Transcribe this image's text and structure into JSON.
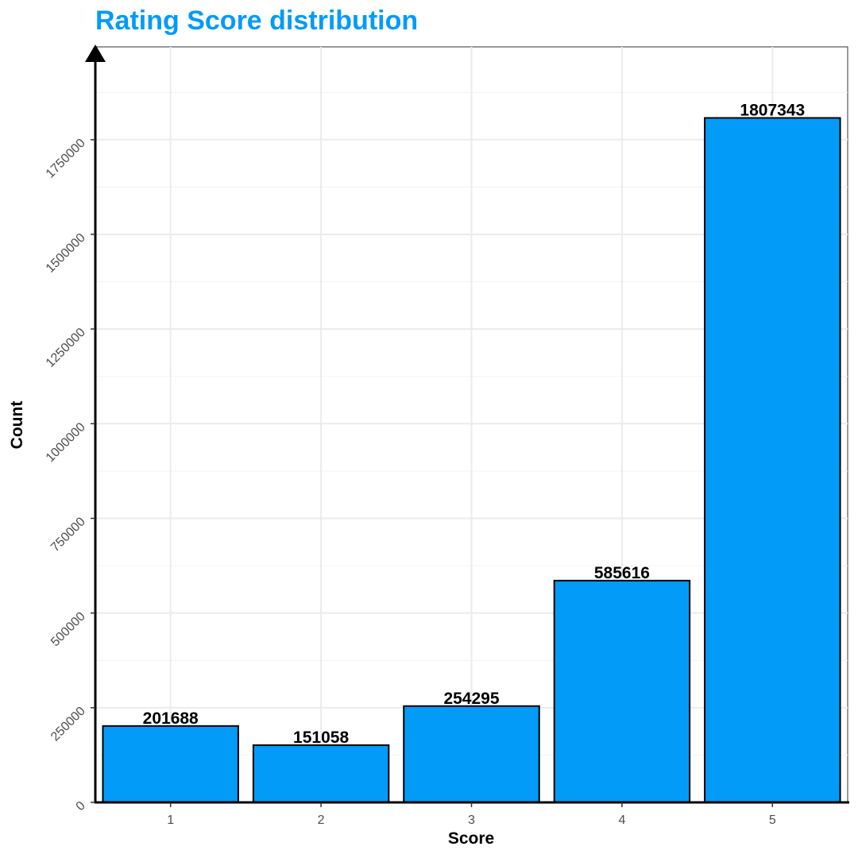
{
  "chart_data": {
    "type": "bar",
    "title": "Rating Score distribution",
    "xlabel": "Score",
    "ylabel": "Count",
    "categories": [
      "1",
      "2",
      "3",
      "4",
      "5"
    ],
    "values": [
      201688,
      151058,
      254295,
      585616,
      1807343
    ],
    "data_labels": [
      "201688",
      "151058",
      "254295",
      "585616",
      "1807343"
    ],
    "ylim": [
      0,
      1995000
    ],
    "y_ticks": [
      0,
      250000,
      500000,
      750000,
      1000000,
      1250000,
      1500000,
      1750000
    ],
    "y_tick_labels": [
      "0",
      "250000",
      "500000",
      "750000",
      "1000000",
      "1250000",
      "1500000",
      "1750000"
    ],
    "grid": true,
    "colors": {
      "bar_fill": "#039BF8",
      "bar_stroke": "#000000",
      "title": "#039BF8",
      "grid_major": "#EBEBEB",
      "grid_minor": "#F3F3F3",
      "panel_border": "#333333",
      "axis_line": "#000000"
    }
  }
}
